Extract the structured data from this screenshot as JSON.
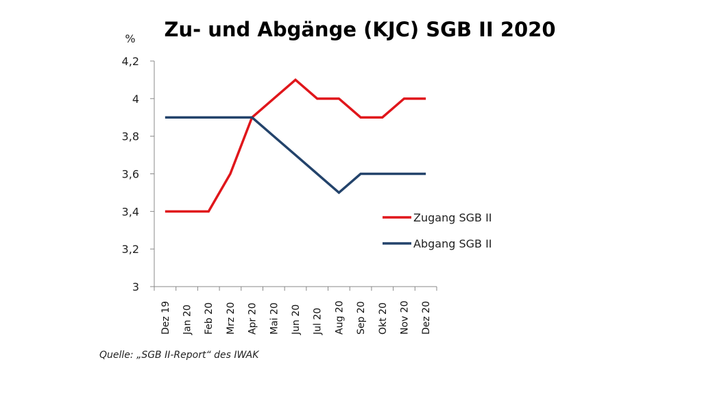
{
  "chart_data": {
    "type": "line",
    "title": "Zu- und Abgänge (KJC) SGB II 2020",
    "ylabel": "%",
    "xlabel": "",
    "ylim": [
      3,
      4.2
    ],
    "yticks": [
      "3",
      "3,2",
      "3,4",
      "3,6",
      "3,8",
      "4",
      "4,2"
    ],
    "ytick_values": [
      3,
      3.2,
      3.4,
      3.6,
      3.8,
      4.0,
      4.2
    ],
    "categories": [
      "Dez 19",
      "Jan 20",
      "Feb 20",
      "Mrz 20",
      "Apr 20",
      "Mai 20",
      "Jun 20",
      "Jul 20",
      "Aug 20",
      "Sep 20",
      "Okt 20",
      "Nov 20",
      "Dez 20"
    ],
    "series": [
      {
        "name": "Zugang SGB II",
        "color": "#e0161b",
        "values": [
          3.4,
          3.4,
          3.4,
          3.6,
          3.9,
          4.0,
          4.1,
          4.0,
          4.0,
          3.9,
          3.9,
          4.0,
          4.0
        ]
      },
      {
        "name": "Abgang SGB II",
        "color": "#23436b",
        "values": [
          3.9,
          3.9,
          3.9,
          3.9,
          3.9,
          3.8,
          3.7,
          3.6,
          3.5,
          3.6,
          3.6,
          3.6,
          3.6
        ]
      }
    ],
    "legend": "right",
    "grid": false
  },
  "source": "Quelle: „SGB II-Report“ des IWAK"
}
